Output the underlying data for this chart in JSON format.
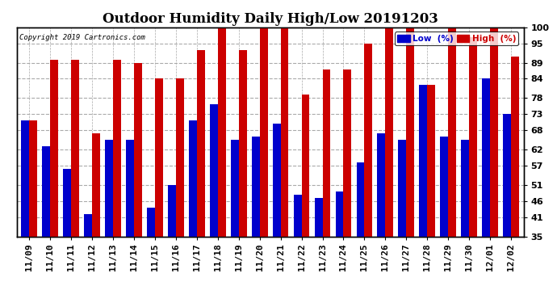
{
  "title": "Outdoor Humidity Daily High/Low 20191203",
  "copyright": "Copyright 2019 Cartronics.com",
  "categories": [
    "11/09",
    "11/10",
    "11/11",
    "11/12",
    "11/13",
    "11/14",
    "11/15",
    "11/16",
    "11/17",
    "11/18",
    "11/19",
    "11/20",
    "11/21",
    "11/22",
    "11/23",
    "11/24",
    "11/25",
    "11/26",
    "11/27",
    "11/28",
    "11/29",
    "11/30",
    "12/01",
    "12/02"
  ],
  "low_values": [
    71,
    63,
    56,
    42,
    65,
    65,
    44,
    51,
    71,
    76,
    65,
    66,
    70,
    48,
    47,
    49,
    58,
    67,
    65,
    82,
    66,
    65,
    84,
    73
  ],
  "high_values": [
    71,
    90,
    90,
    67,
    90,
    89,
    84,
    84,
    93,
    100,
    93,
    100,
    100,
    79,
    87,
    87,
    95,
    100,
    100,
    82,
    100,
    97,
    100,
    91
  ],
  "low_color": "#0000cc",
  "high_color": "#cc0000",
  "ymin": 35,
  "ymax": 100,
  "yticks": [
    35,
    41,
    46,
    51,
    57,
    62,
    68,
    73,
    78,
    84,
    89,
    95,
    100
  ],
  "bg_color": "#ffffff",
  "grid_color": "#aaaaaa",
  "title_fontsize": 12,
  "tick_fontsize": 8,
  "bar_width": 0.38,
  "legend_low_label": "Low  (%)",
  "legend_high_label": "High  (%)"
}
